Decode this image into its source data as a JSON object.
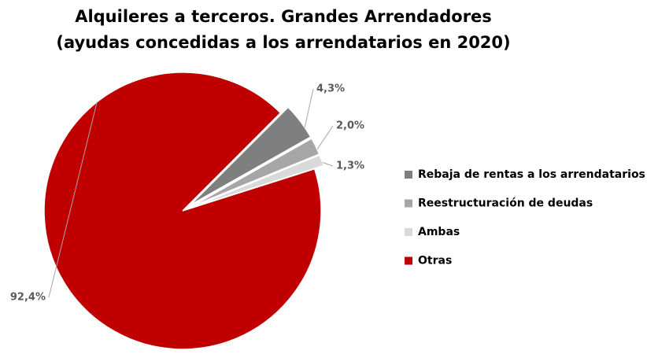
{
  "chart_data": {
    "type": "pie",
    "title": "Alquileres a terceros. Grandes Arrendadores",
    "subtitle": "(ayudas concedidas a los arrendatarios en 2020)",
    "categories": [
      "Rebaja de rentas a los arrendatarios",
      "Reestructuración de deudas",
      "Ambas",
      "Otras"
    ],
    "values": [
      4.3,
      2.0,
      1.3,
      92.4
    ],
    "value_labels": [
      "4,3%",
      "2,0%",
      "1,3%",
      "92,4%"
    ],
    "colors": [
      "#7f7f7f",
      "#a6a6a6",
      "#d9d9d9",
      "#c00000"
    ],
    "legend": "right"
  }
}
